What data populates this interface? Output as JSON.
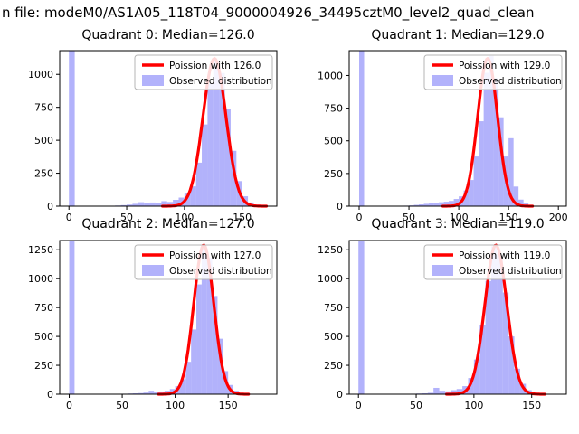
{
  "figure": {
    "suptitle": "n file: modeM0/AS1A05_118T04_9000004926_34495cztM0_level2_quad_clean",
    "background": "#ffffff"
  },
  "chart_data": [
    {
      "type": "bar",
      "subtype": "histogram-with-curve",
      "title": "Quadrant 0: Median=126.0",
      "median": 126.0,
      "legend": [
        {
          "label": "Poission with 126.0",
          "type": "line",
          "color": "#ff0000"
        },
        {
          "label": "Observed distribution",
          "type": "patch",
          "color": "#8383f8"
        }
      ],
      "legend_position": "upper right",
      "bar_color": "#8383f8",
      "line_color": "#ff0000",
      "bin_start": 0,
      "bin_width": 5,
      "values": [
        2000,
        0,
        0,
        0,
        0,
        0,
        0,
        0,
        5,
        8,
        12,
        18,
        30,
        22,
        28,
        24,
        38,
        32,
        48,
        65,
        95,
        150,
        330,
        620,
        930,
        1100,
        1010,
        740,
        420,
        190,
        75,
        28,
        12,
        5,
        0
      ],
      "curve": {
        "mu": 126.0,
        "sigma": 10.0,
        "peak": 1120
      },
      "xlim": [
        -8,
        180
      ],
      "ylim": [
        0,
        1180
      ],
      "xticks": [
        0,
        50,
        100,
        150
      ],
      "yticks": [
        0,
        250,
        500,
        750,
        1000
      ],
      "xlabel": "",
      "ylabel": ""
    },
    {
      "type": "bar",
      "subtype": "histogram-with-curve",
      "title": "Quadrant 1: Median=129.0",
      "median": 129.0,
      "legend": [
        {
          "label": "Poission with 129.0",
          "type": "line",
          "color": "#ff0000"
        },
        {
          "label": "Observed distribution",
          "type": "patch",
          "color": "#8383f8"
        }
      ],
      "legend_position": "upper right",
      "bar_color": "#8383f8",
      "line_color": "#ff0000",
      "bin_start": 0,
      "bin_width": 5,
      "values": [
        2000,
        0,
        0,
        0,
        0,
        0,
        0,
        0,
        0,
        4,
        6,
        10,
        14,
        18,
        22,
        26,
        30,
        34,
        40,
        55,
        75,
        120,
        200,
        380,
        650,
        1020,
        1150,
        980,
        680,
        380,
        520,
        150,
        50,
        20,
        8,
        0,
        0,
        0,
        0,
        0
      ],
      "curve": {
        "mu": 129.0,
        "sigma": 10.0,
        "peak": 1130
      },
      "xlim": [
        -10,
        208
      ],
      "ylim": [
        0,
        1190
      ],
      "xticks": [
        0,
        50,
        100,
        150,
        200
      ],
      "yticks": [
        0,
        250,
        500,
        750,
        1000
      ],
      "xlabel": "",
      "ylabel": ""
    },
    {
      "type": "bar",
      "subtype": "histogram-with-curve",
      "title": "Quadrant 2: Median=127.0",
      "median": 127.0,
      "legend": [
        {
          "label": "Poission with 127.0",
          "type": "line",
          "color": "#ff0000"
        },
        {
          "label": "Observed distribution",
          "type": "patch",
          "color": "#8383f8"
        }
      ],
      "legend_position": "upper right",
      "bar_color": "#8383f8",
      "line_color": "#ff0000",
      "bin_start": 0,
      "bin_width": 5,
      "values": [
        2200,
        0,
        0,
        0,
        0,
        0,
        0,
        0,
        0,
        0,
        4,
        6,
        8,
        10,
        14,
        30,
        20,
        24,
        30,
        45,
        70,
        130,
        280,
        560,
        950,
        1280,
        1180,
        850,
        480,
        200,
        80,
        30,
        12,
        5,
        0,
        0,
        0,
        0
      ],
      "curve": {
        "mu": 127.0,
        "sigma": 9.5,
        "peak": 1290
      },
      "xlim": [
        -9,
        196
      ],
      "ylim": [
        0,
        1330
      ],
      "xticks": [
        0,
        50,
        100,
        150
      ],
      "yticks": [
        0,
        250,
        500,
        750,
        1000,
        1250
      ],
      "xlabel": "",
      "ylabel": ""
    },
    {
      "type": "bar",
      "subtype": "histogram-with-curve",
      "title": "Quadrant 3: Median=119.0",
      "median": 119.0,
      "legend": [
        {
          "label": "Poission with 119.0",
          "type": "line",
          "color": "#ff0000"
        },
        {
          "label": "Observed distribution",
          "type": "patch",
          "color": "#8383f8"
        }
      ],
      "legend_position": "upper right",
      "bar_color": "#8383f8",
      "line_color": "#ff0000",
      "bin_start": 0,
      "bin_width": 5,
      "values": [
        2200,
        0,
        0,
        0,
        0,
        0,
        0,
        0,
        0,
        4,
        6,
        8,
        12,
        55,
        30,
        25,
        35,
        45,
        70,
        140,
        300,
        600,
        980,
        1280,
        1200,
        880,
        500,
        220,
        90,
        35,
        14,
        6,
        0,
        0,
        0
      ],
      "curve": {
        "mu": 119.0,
        "sigma": 9.5,
        "peak": 1290
      },
      "xlim": [
        -8,
        180
      ],
      "ylim": [
        0,
        1330
      ],
      "xticks": [
        0,
        50,
        100,
        150
      ],
      "yticks": [
        0,
        250,
        500,
        750,
        1000,
        1250
      ],
      "xlabel": "",
      "ylabel": ""
    }
  ]
}
